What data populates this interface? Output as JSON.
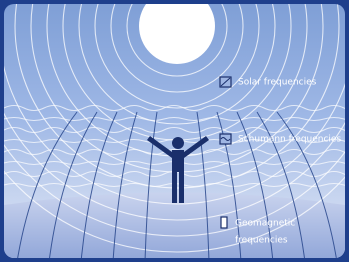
{
  "legend": {
    "solar": "Solar frequencies",
    "schumann": "Schumann frequencies",
    "geomagnetic": [
      "Geomagnetic",
      "frequencies"
    ]
  }
}
